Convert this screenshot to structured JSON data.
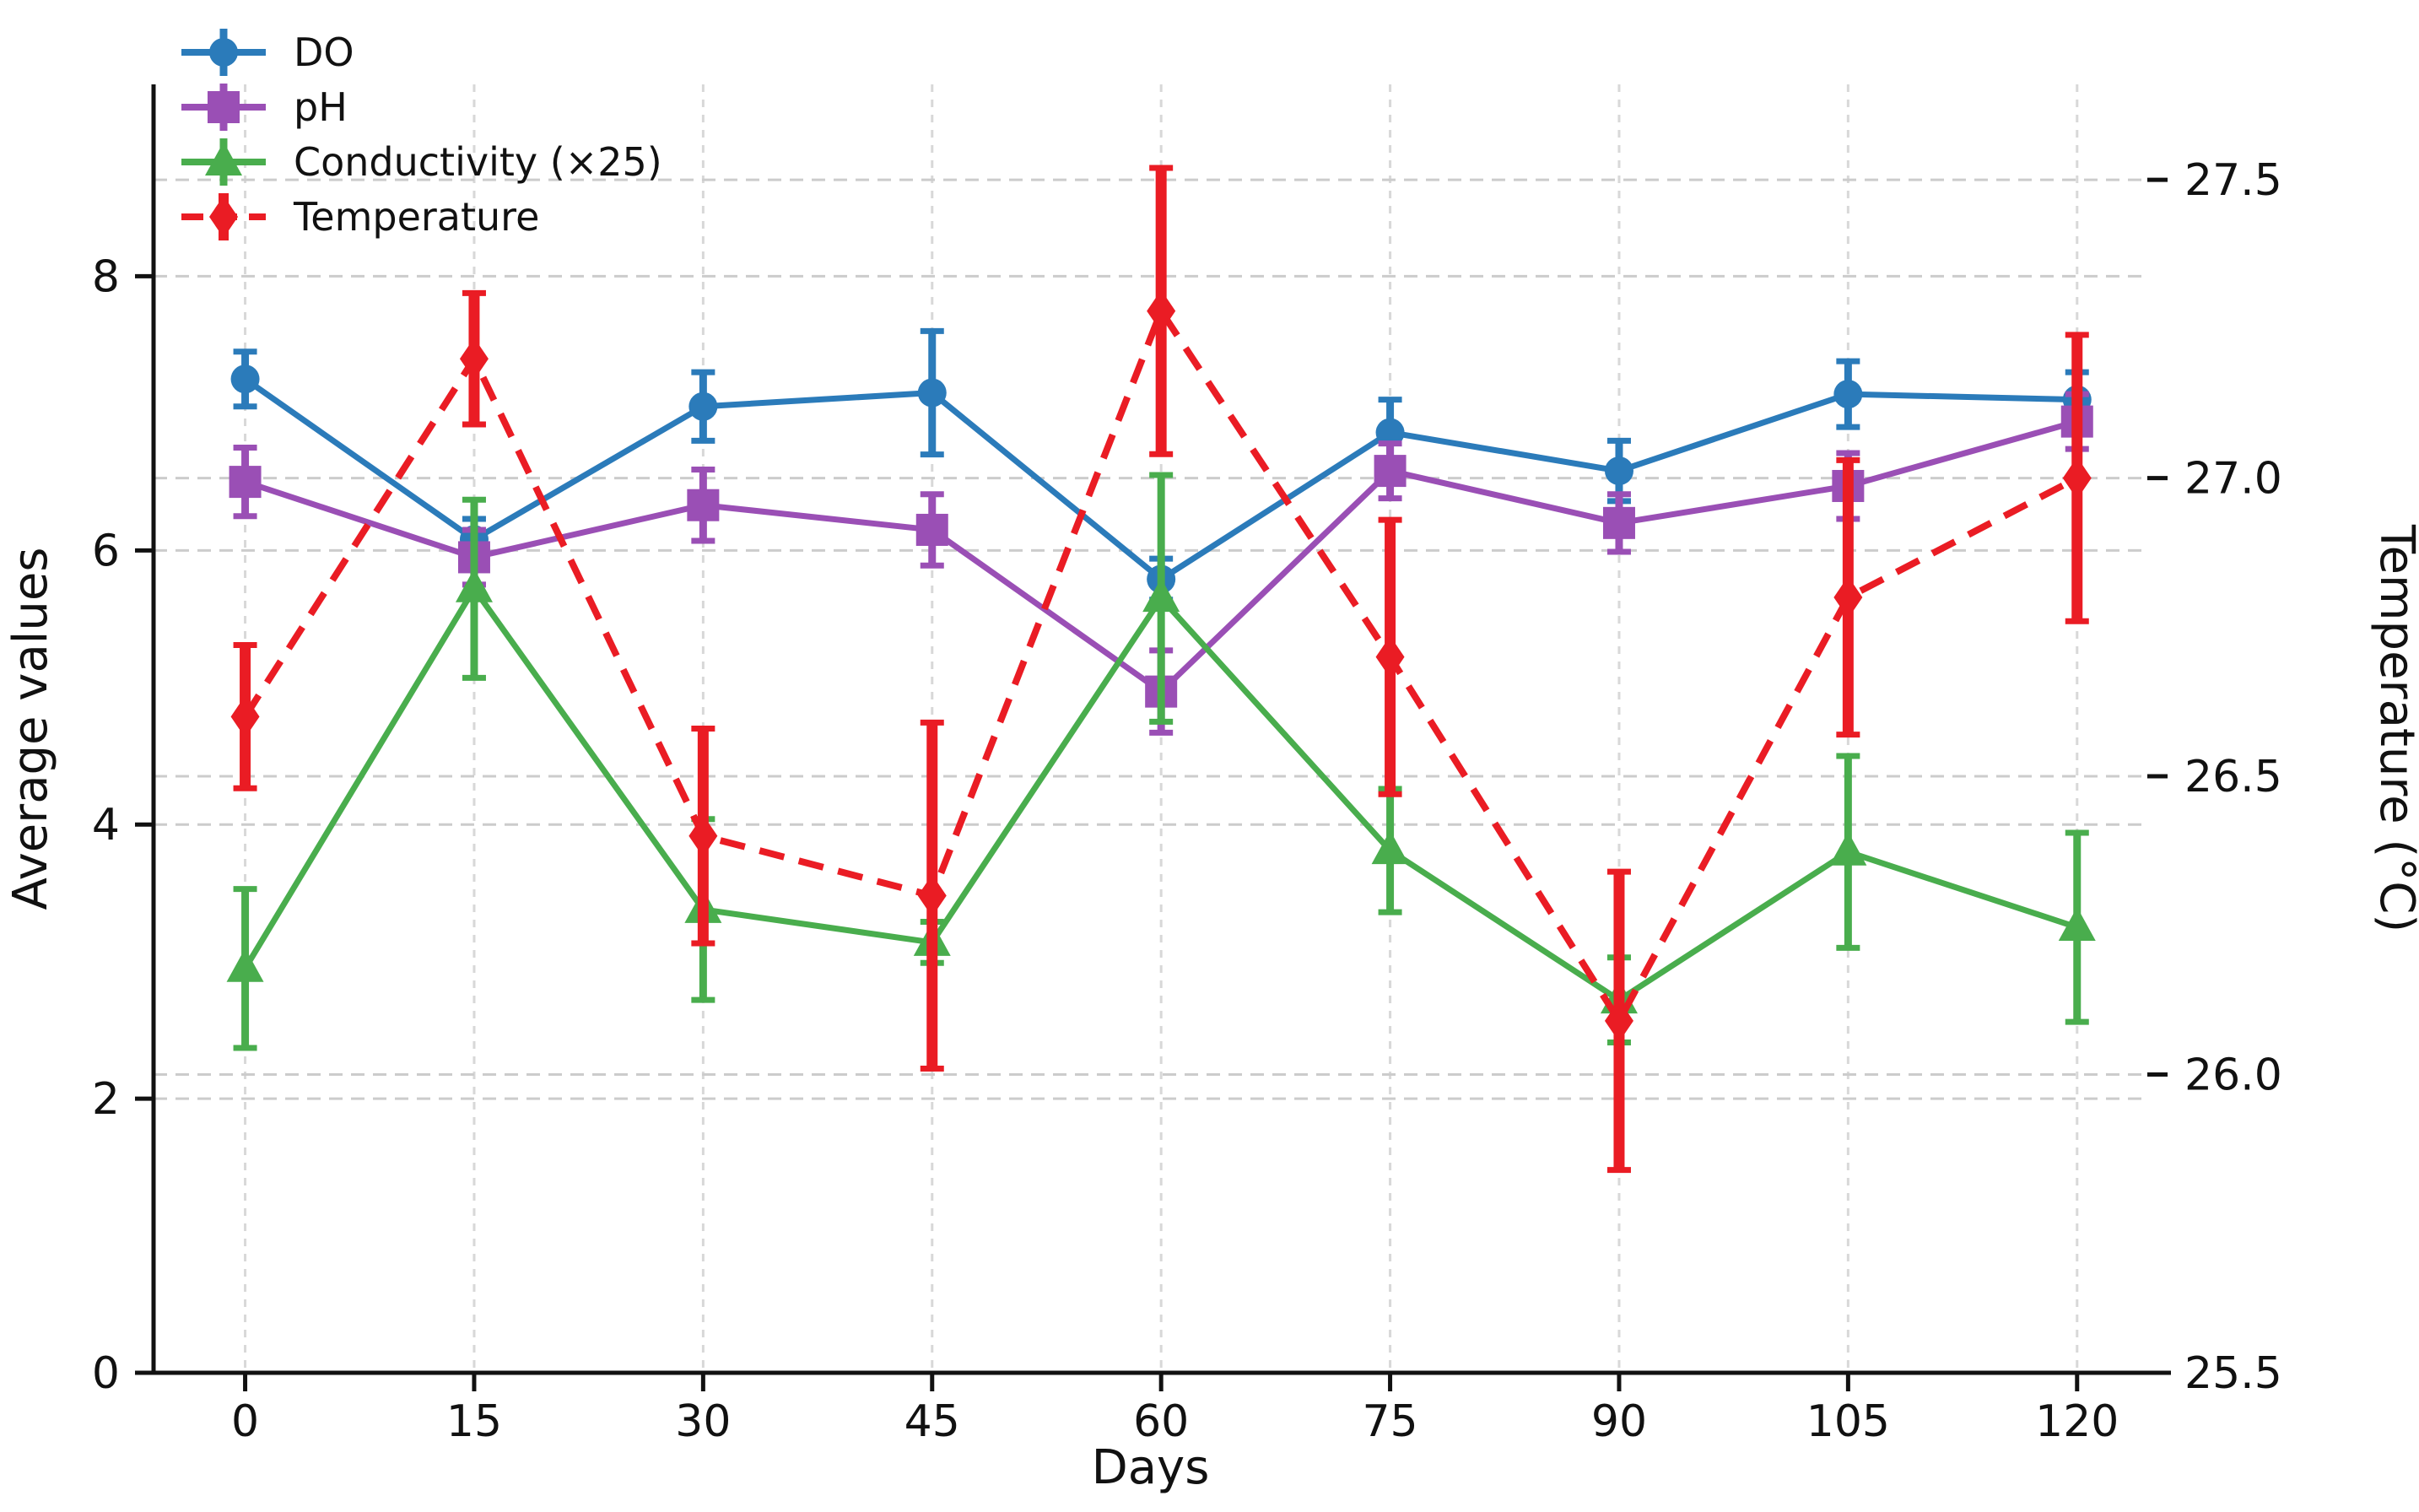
{
  "figure": {
    "background": "#ffffff",
    "title": ""
  },
  "chart_data": {
    "type": "line",
    "x": [
      0,
      15,
      30,
      45,
      60,
      75,
      90,
      105,
      120
    ],
    "xlabel": "Days",
    "ylabel_left": "Average values",
    "ylabel_right": "Temperature (°C)",
    "xlim": [
      -6,
      124.6
    ],
    "ylim_left": [
      0,
      9.4
    ],
    "ylim_right": [
      25.5,
      27.66
    ],
    "xticks": [
      0,
      15,
      30,
      45,
      60,
      75,
      90,
      105,
      120
    ],
    "yticks_left": [
      0,
      2,
      4,
      6,
      8
    ],
    "yticks_right": [
      25.5,
      26.0,
      26.5,
      27.0,
      27.5
    ],
    "grid": true,
    "legend_position": "upper left",
    "colors": {
      "do": "#2b7bba",
      "ph": "#9a4fb5",
      "conductivity": "#49ad4d",
      "temperature": "#ea1c24",
      "grid_h": "#cccccc",
      "grid_v": "#d8d8d8",
      "axis": "#111111"
    },
    "series": [
      {
        "name": "DO",
        "axis": "left",
        "color": "#2b7bba",
        "marker": "circle",
        "linestyle": "solid",
        "values": [
          7.25,
          6.08,
          7.05,
          7.15,
          5.79,
          6.86,
          6.58,
          7.14,
          7.1
        ],
        "errors": [
          0.2,
          0.15,
          0.25,
          0.45,
          0.15,
          0.24,
          0.22,
          0.24,
          0.2
        ]
      },
      {
        "name": "pH",
        "axis": "left",
        "color": "#9a4fb5",
        "marker": "square",
        "linestyle": "solid",
        "values": [
          6.5,
          5.95,
          6.33,
          6.15,
          4.97,
          6.58,
          6.2,
          6.47,
          6.94
        ],
        "errors": [
          0.25,
          0.2,
          0.26,
          0.26,
          0.3,
          0.2,
          0.21,
          0.24,
          0.2
        ]
      },
      {
        "name": "Conductivity (×25)",
        "axis": "left",
        "color": "#49ad4d",
        "marker": "triangle",
        "linestyle": "solid",
        "values": [
          2.95,
          5.72,
          3.38,
          3.14,
          5.65,
          3.81,
          2.72,
          3.8,
          3.25
        ],
        "errors": [
          0.58,
          0.65,
          0.66,
          0.15,
          0.9,
          0.45,
          0.31,
          0.7,
          0.69
        ]
      },
      {
        "name": "Temperature",
        "axis": "right",
        "color": "#ea1c24",
        "marker": "diamond",
        "linestyle": "dashed",
        "values": [
          26.6,
          27.2,
          26.4,
          26.3,
          27.28,
          26.7,
          26.09,
          26.8,
          27.0
        ],
        "errors": [
          0.12,
          0.11,
          0.18,
          0.29,
          0.24,
          0.23,
          0.25,
          0.23,
          0.24
        ]
      }
    ]
  }
}
